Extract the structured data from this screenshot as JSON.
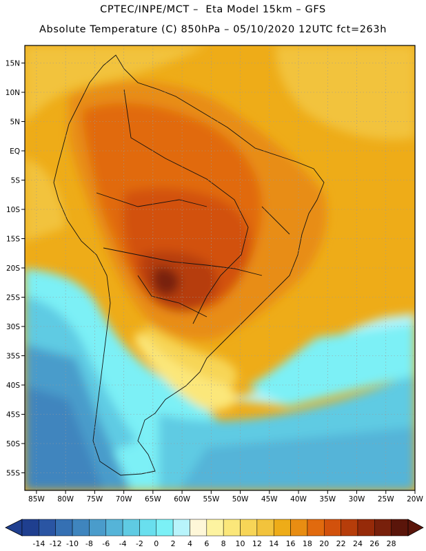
{
  "header": {
    "title_line1": "CPTEC/INPE/MCT –  Eta Model 15km – GFS",
    "title_line2": "Absolute Temperature (C) 850hPa – 05/10/2020 12UTC fct=263h"
  },
  "map": {
    "lat_labels": [
      "15N",
      "10N",
      "5N",
      "EQ",
      "5S",
      "10S",
      "15S",
      "20S",
      "25S",
      "30S",
      "35S",
      "40S",
      "45S",
      "50S",
      "55S"
    ],
    "lat_values": [
      15,
      10,
      5,
      0,
      -5,
      -10,
      -15,
      -20,
      -25,
      -30,
      -35,
      -40,
      -45,
      -50,
      -55
    ],
    "lon_labels": [
      "85W",
      "80W",
      "75W",
      "70W",
      "65W",
      "60W",
      "55W",
      "50W",
      "45W",
      "40W",
      "35W",
      "30W",
      "25W",
      "20W"
    ],
    "lon_values": [
      -85,
      -80,
      -75,
      -70,
      -65,
      -60,
      -55,
      -50,
      -45,
      -40,
      -35,
      -30,
      -25,
      -20
    ],
    "lat_range": [
      -58,
      18
    ],
    "lon_range": [
      -87,
      -20
    ]
  },
  "colorbar": {
    "labels": [
      "-14",
      "-12",
      "-10",
      "-8",
      "-6",
      "-4",
      "-2",
      "0",
      "2",
      "4",
      "6",
      "8",
      "10",
      "12",
      "14",
      "16",
      "18",
      "20",
      "22",
      "24",
      "26",
      "28"
    ],
    "colors": [
      "#1f3f8f",
      "#2a55a3",
      "#3570b3",
      "#3f85be",
      "#4a9ccb",
      "#55b4d8",
      "#5fcbe3",
      "#69dfee",
      "#7bf0f6",
      "#b8f4fb",
      "#fef7d8",
      "#fdf3a0",
      "#fbe77a",
      "#f7d557",
      "#f2c33c",
      "#eeac18",
      "#e88d12",
      "#e16a0e",
      "#d2510c",
      "#b63d0a",
      "#962a09",
      "#78200b",
      "#5a150a"
    ]
  }
}
